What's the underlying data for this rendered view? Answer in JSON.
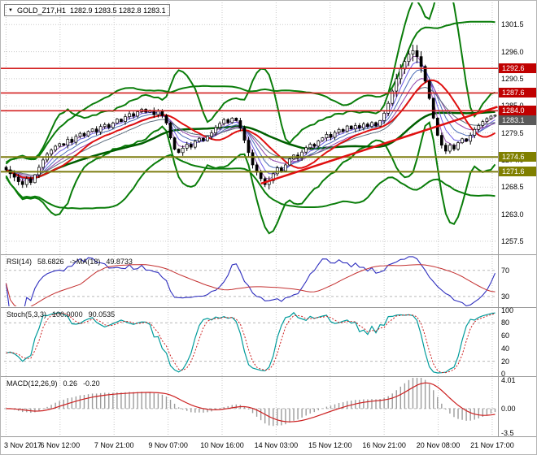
{
  "header": {
    "collapse_icon": "▼",
    "symbol_timeframe": "GOLD_Z17,H1",
    "ohlc": "1282.9 1283.5 1282.8 1283.1"
  },
  "price_axis": {
    "ticks": [
      1301.5,
      1296.0,
      1290.5,
      1285.0,
      1279.5,
      1274.0,
      1268.5,
      1263.0,
      1257.5
    ]
  },
  "time_axis": {
    "labels": [
      "3 Nov 2017",
      "6 Nov 12:00",
      "7 Nov 21:00",
      "9 Nov 07:00",
      "10 Nov 16:00",
      "14 Nov 03:00",
      "15 Nov 12:00",
      "16 Nov 21:00",
      "20 Nov 08:00",
      "21 Nov 17:00"
    ]
  },
  "levels": {
    "resistance": [
      {
        "price": 1292.6,
        "label": "1292.6"
      },
      {
        "price": 1287.6,
        "label": "1287.6"
      },
      {
        "price": 1284.0,
        "label": "1284.0"
      }
    ],
    "support": [
      {
        "price": 1274.6,
        "label": "1274.6"
      },
      {
        "price": 1271.6,
        "label": "1271.6"
      }
    ],
    "current": {
      "price": 1283.1,
      "label": "1283.1"
    }
  },
  "indicators": {
    "rsi": {
      "name": "RSI(14)",
      "value": "58.6826",
      "ma_name": "->MA(18)",
      "ma_value": "49.8733",
      "axis_ticks": [
        70,
        30
      ]
    },
    "stoch": {
      "name": "Stoch(5,3,3)",
      "value": "100.0000",
      "signal_value": "90.0535",
      "axis_ticks": [
        100,
        80,
        60,
        40,
        20,
        0
      ]
    },
    "macd": {
      "name": "MACD(12,26,9)",
      "value": "0.26",
      "signal_value": "-0.20",
      "axis_ticks": [
        "4.01",
        "0.00",
        "-3.5"
      ]
    }
  },
  "colors": {
    "grid": "#c9c9c9",
    "level_dash": "#b8b8b8",
    "candle": "#000000",
    "band_green": "#0a7d0a",
    "mid_ma": "#005f00",
    "red": "#e01010",
    "ribbon": [
      "#9b59b6",
      "#6c5ce7",
      "#4b6cb7",
      "#8e44ad",
      "#5d6d7e"
    ],
    "resistance": "#d32020",
    "support": "#7e7e10",
    "tag_resistance_bg": "#c00000",
    "tag_support_bg": "#808000",
    "tag_current_bg": "#5a5a5a",
    "rsi": "#2e2ebe",
    "rsi_ma": "#c43030",
    "stoch_k": "#009b9b",
    "stoch_d": "#cc2020",
    "macd_hist": "#9c9c9c",
    "macd_signal": "#cc2020",
    "axis_text": "#000000"
  },
  "chart_data": [
    {
      "id": "price",
      "type": "candlestick",
      "title": "GOLD_Z17,H1",
      "ylim": [
        1255.0,
        1306.0
      ],
      "y_ticks": [
        1301.5,
        1296.0,
        1290.5,
        1285.0,
        1279.5,
        1274.0,
        1268.5,
        1263.0,
        1257.5
      ],
      "x_labels": [
        "3 Nov 2017",
        "6 Nov 12:00",
        "7 Nov 21:00",
        "9 Nov 07:00",
        "10 Nov 16:00",
        "14 Nov 03:00",
        "15 Nov 12:00",
        "16 Nov 21:00",
        "20 Nov 08:00",
        "21 Nov 17:00"
      ],
      "open_first": 1272.5,
      "closes": [
        1272.0,
        1271.2,
        1270.5,
        1269.6,
        1269.0,
        1270.2,
        1269.4,
        1271.0,
        1272.5,
        1274.0,
        1275.2,
        1276.0,
        1276.8,
        1277.3,
        1277.0,
        1278.2,
        1277.6,
        1278.8,
        1279.4,
        1278.9,
        1279.8,
        1280.3,
        1279.7,
        1280.8,
        1281.2,
        1280.6,
        1281.5,
        1282.3,
        1281.8,
        1282.8,
        1283.4,
        1282.9,
        1283.8,
        1284.3,
        1283.7,
        1284.1,
        1283.2,
        1283.9,
        1283.0,
        1281.5,
        1278.5,
        1276.2,
        1275.5,
        1276.4,
        1277.2,
        1276.6,
        1277.8,
        1278.4,
        1277.9,
        1278.8,
        1279.5,
        1280.6,
        1281.4,
        1282.2,
        1281.6,
        1282.5,
        1282.0,
        1280.5,
        1278.0,
        1275.5,
        1273.0,
        1271.5,
        1270.2,
        1269.0,
        1269.8,
        1271.2,
        1272.4,
        1271.8,
        1273.0,
        1274.2,
        1275.0,
        1274.4,
        1275.6,
        1276.5,
        1277.2,
        1276.8,
        1277.9,
        1278.5,
        1279.2,
        1278.6,
        1279.6,
        1280.2,
        1279.8,
        1280.9,
        1280.3,
        1281.0,
        1280.5,
        1281.3,
        1280.8,
        1281.6,
        1280.9,
        1282.0,
        1283.5,
        1285.5,
        1288.0,
        1290.5,
        1292.5,
        1294.0,
        1295.5,
        1296.2,
        1295.0,
        1293.0,
        1290.0,
        1286.5,
        1282.5,
        1279.0,
        1277.0,
        1275.8,
        1277.0,
        1276.2,
        1277.5,
        1278.3,
        1277.8,
        1279.0,
        1280.2,
        1281.0,
        1281.8,
        1282.4,
        1282.9,
        1283.1
      ],
      "overlays": {
        "bollinger": [
          {
            "period": 10,
            "mult": 3.0,
            "pad": 1.2
          },
          {
            "period": 26,
            "mult": 2.4,
            "pad": 1.5
          }
        ],
        "mid_ma_period": 34,
        "red_ma_period": 13,
        "ema_ribbon_periods": [
          3,
          5,
          8,
          12,
          17
        ]
      },
      "trendline": {
        "from_index": 62,
        "from_price": 1269.2,
        "to_index": 119,
        "to_price": 1284.8
      },
      "levels_resistance": [
        1292.6,
        1287.6,
        1284.0
      ],
      "levels_support": [
        1274.6,
        1271.6
      ],
      "current_price": 1283.1
    },
    {
      "id": "rsi",
      "type": "line",
      "period": 14,
      "ma_period": 18,
      "last_value": 58.6826,
      "ma_last_value": 49.8733,
      "ylim": [
        15,
        92
      ],
      "levels": [
        70,
        30
      ]
    },
    {
      "id": "stoch",
      "type": "line",
      "k": 5,
      "slowing": 3,
      "d": 3,
      "last_k": 100.0,
      "last_d": 90.0535,
      "ylim": [
        -2,
        102
      ],
      "levels": [
        80,
        20
      ]
    },
    {
      "id": "macd",
      "type": "histogram+line",
      "fast": 12,
      "slow": 26,
      "signal": 9,
      "last_value": 0.26,
      "last_signal": -0.2,
      "ylim": [
        -3.8,
        4.35
      ],
      "levels": [
        0
      ]
    }
  ]
}
